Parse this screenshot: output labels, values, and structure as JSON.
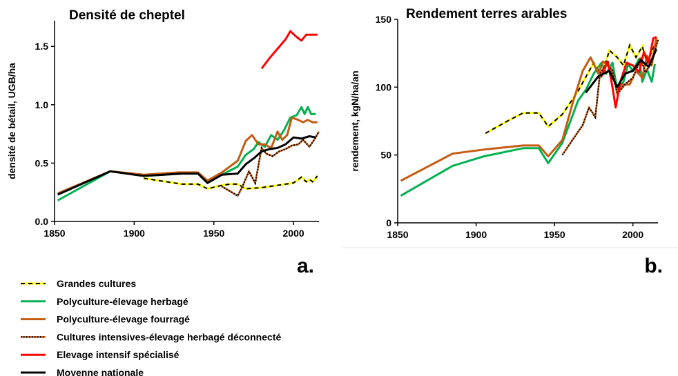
{
  "chart_data": [
    {
      "type": "line",
      "title": "Densité de cheptel",
      "label": "a.",
      "y_label": "densité de bétail, UGB/ha",
      "xlim": [
        1850,
        2016
      ],
      "xticks": [
        1850,
        1900,
        1950,
        2000
      ],
      "ylim": [
        0,
        1.72
      ],
      "yticks": [
        {
          "value": 0,
          "label": "0.0"
        },
        0.5,
        {
          "value": 1,
          "label": "1.0"
        },
        1.5
      ],
      "series": [
        {
          "name": "Grandes cultures",
          "color": "#ffff00",
          "style": "dashed",
          "x": [
            1906,
            1930,
            1940,
            1946,
            1955,
            1960,
            1965,
            1970,
            1980,
            1990,
            2000,
            2005,
            2008,
            2010,
            2012,
            2015
          ],
          "values": [
            0.37,
            0.32,
            0.32,
            0.28,
            0.31,
            0.32,
            0.32,
            0.28,
            0.29,
            0.31,
            0.33,
            0.38,
            0.34,
            0.36,
            0.34,
            0.39
          ]
        },
        {
          "name": "Polyculture-élevage herbagé",
          "color": "#00b050",
          "style": "solid",
          "x": [
            1852,
            1885,
            1906,
            1930,
            1940,
            1946,
            1955,
            1965,
            1970,
            1975,
            1978,
            1982,
            1986,
            1990,
            1994,
            1998,
            2002,
            2005,
            2007,
            2009,
            2011,
            2014
          ],
          "values": [
            0.18,
            0.43,
            0.39,
            0.41,
            0.41,
            0.33,
            0.4,
            0.47,
            0.57,
            0.62,
            0.68,
            0.64,
            0.74,
            0.7,
            0.78,
            0.89,
            0.91,
            0.98,
            0.92,
            0.98,
            0.92,
            0.92
          ]
        },
        {
          "name": "Polyculture-élevage fourragé",
          "color": "#c55a11",
          "style": "solid",
          "x": [
            1852,
            1885,
            1906,
            1928,
            1940,
            1946,
            1955,
            1965,
            1970,
            1974,
            1978,
            1982,
            1986,
            1990,
            1993,
            1996,
            1999,
            2003,
            2006,
            2009,
            2012,
            2015
          ],
          "values": [
            0.24,
            0.43,
            0.4,
            0.42,
            0.42,
            0.35,
            0.42,
            0.52,
            0.69,
            0.74,
            0.66,
            0.66,
            0.63,
            0.77,
            0.7,
            0.74,
            0.89,
            0.87,
            0.85,
            0.87,
            0.85,
            0.85
          ]
        },
        {
          "name": "Cultures intensives-élevage herbagé déconnecté",
          "color": "#c55a11",
          "style": "dotted",
          "x": [
            1955,
            1960,
            1965,
            1968,
            1972,
            1976,
            1980,
            1983,
            1987,
            1991,
            1995,
            1999,
            2003,
            2006,
            2010,
            2013,
            2016
          ],
          "values": [
            0.3,
            0.26,
            0.22,
            0.3,
            0.43,
            0.33,
            0.63,
            0.58,
            0.56,
            0.6,
            0.62,
            0.65,
            0.66,
            0.7,
            0.64,
            0.7,
            0.77
          ]
        },
        {
          "name": "Elevage intensif spécialisé",
          "color": "#ff0000",
          "style": "solid",
          "x": [
            1980,
            1985,
            1990,
            1995,
            1998,
            2002,
            2005,
            2008,
            2012,
            2015
          ],
          "values": [
            1.31,
            1.4,
            1.48,
            1.56,
            1.63,
            1.58,
            1.55,
            1.6,
            1.6,
            1.6
          ]
        },
        {
          "name": "Moyenne nationale",
          "color": "#000000",
          "style": "solid",
          "x": [
            1852,
            1885,
            1906,
            1930,
            1940,
            1946,
            1955,
            1965,
            1970,
            1975,
            1980,
            1985,
            1990,
            1995,
            2000,
            2005,
            2010,
            2014
          ],
          "values": [
            0.23,
            0.43,
            0.39,
            0.41,
            0.41,
            0.33,
            0.4,
            0.41,
            0.49,
            0.54,
            0.6,
            0.62,
            0.63,
            0.66,
            0.72,
            0.71,
            0.73,
            0.72
          ]
        }
      ]
    },
    {
      "type": "line",
      "title": "Rendement terres arables",
      "label": "b.",
      "y_label": "rendement, kgN/ha/an",
      "xlim": [
        1850,
        2016
      ],
      "xticks": [
        1850,
        1900,
        1950,
        2000
      ],
      "ylim": [
        0,
        150
      ],
      "yticks": [
        0,
        50,
        100,
        150
      ],
      "series": [
        {
          "color": "#ffff00",
          "style": "dashed",
          "x": [
            1906,
            1920,
            1930,
            1940,
            1946,
            1955,
            1965,
            1975,
            1980,
            1985,
            1990,
            1994,
            1998,
            2002,
            2006,
            2009,
            2012,
            2015
          ],
          "values": [
            66,
            75,
            81,
            81,
            71,
            80,
            97,
            118,
            108,
            127,
            122,
            116,
            131,
            122,
            130,
            118,
            126,
            134
          ]
        },
        {
          "color": "#00b050",
          "style": "solid",
          "x": [
            1852,
            1885,
            1905,
            1930,
            1940,
            1946,
            1955,
            1965,
            1970,
            1975,
            1980,
            1983,
            1987,
            1990,
            1994,
            1997,
            2000,
            2004,
            2006,
            2009,
            2012,
            2014
          ],
          "values": [
            20,
            42,
            49,
            55,
            55,
            44,
            59,
            90,
            98,
            110,
            118,
            110,
            118,
            98,
            104,
            117,
            112,
            121,
            104,
            113,
            104,
            117
          ]
        },
        {
          "color": "#c55a11",
          "style": "solid",
          "x": [
            1852,
            1885,
            1905,
            1930,
            1940,
            1946,
            1955,
            1962,
            1968,
            1973,
            1978,
            1981,
            1986,
            1990,
            1994,
            1998,
            2002,
            2006,
            2009,
            2012,
            2015
          ],
          "values": [
            31,
            51,
            54,
            57,
            57,
            49,
            61,
            90,
            112,
            122,
            110,
            119,
            114,
            97,
            102,
            102,
            112,
            107,
            123,
            116,
            137
          ]
        },
        {
          "color": "#c55a11",
          "style": "dotted",
          "x": [
            1955,
            1962,
            1968,
            1972,
            1976,
            1979,
            1983,
            1987,
            1990,
            1995,
            2000,
            2005,
            2008,
            2012,
            2016
          ],
          "values": [
            50,
            62,
            72,
            85,
            78,
            110,
            117,
            112,
            95,
            102,
            107,
            121,
            111,
            118,
            135
          ]
        },
        {
          "color": "#ff0000",
          "style": "solid",
          "x": [
            1980,
            1984,
            1987,
            1989,
            1992,
            1996,
            2000,
            2004,
            2007,
            2010,
            2013,
            2015
          ],
          "values": [
            108,
            119,
            100,
            85,
            104,
            118,
            116,
            111,
            126,
            118,
            136,
            137
          ]
        },
        {
          "color": "#000000",
          "style": "solid",
          "x": [
            1970,
            1978,
            1985,
            1990,
            1995,
            2000,
            2005,
            2010,
            2015
          ],
          "values": [
            96,
            108,
            112,
            100,
            110,
            112,
            120,
            115,
            128
          ]
        }
      ]
    }
  ]
}
